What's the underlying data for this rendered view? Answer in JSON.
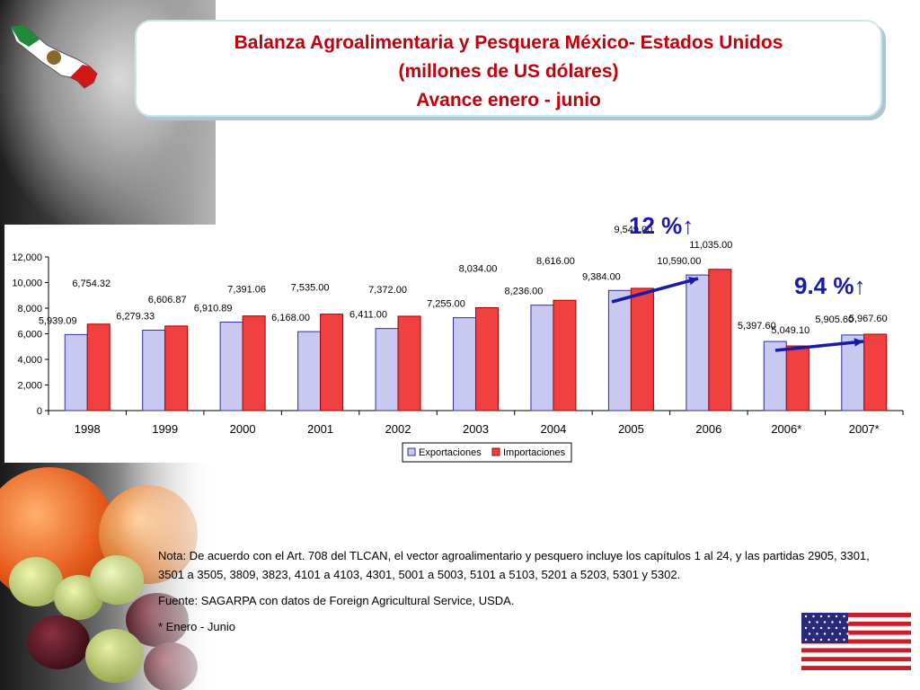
{
  "header": {
    "title_line1": "Balanza Agroalimentaria y Pesquera México- Estados Unidos",
    "title_line2": "(millones de US dólares)",
    "title_line3": "Avance enero - junio"
  },
  "annotations": {
    "growth_2005_2006": "12 %↑",
    "growth_2007": "9.4 %↑"
  },
  "colors": {
    "exports_fill": "#c8c8f0",
    "exports_stroke": "#3030a0",
    "imports_fill": "#f04040",
    "imports_stroke": "#a00000",
    "title": "#c0000c",
    "arrow": "#1a1aa8"
  },
  "notes": {
    "nota": "Nota: De acuerdo con el Art. 708 del TLCAN, el vector agroalimentario y pesquero incluye los capítulos 1 al 24, y las partidas 2905, 3301, 3501 a 3505, 3809, 3823, 4101 a 4103, 4301, 5001 a 5003, 5101 a 5103, 5201 a 5203, 5301 y 5302.",
    "fuente": "Fuente: SAGARPA con datos de Foreign Agricultural Service, USDA.",
    "asterisco": "* Enero - Junio"
  },
  "chart_data": {
    "type": "bar",
    "title": "",
    "xlabel": "",
    "ylabel": "",
    "categories": [
      "1998",
      "1999",
      "2000",
      "2001",
      "2002",
      "2003",
      "2004",
      "2005",
      "2006",
      "2006*",
      "2007*"
    ],
    "ylim": [
      0,
      12000
    ],
    "yticks": [
      0,
      2000,
      4000,
      6000,
      8000,
      10000,
      12000
    ],
    "ytick_labels": [
      "0",
      "2,000",
      "4,000",
      "6,000",
      "8,000",
      "10,000",
      "12,000"
    ],
    "grid": false,
    "legend_position": "bottom",
    "series": [
      {
        "name": "Exportaciones",
        "values": [
          5939.09,
          6279.33,
          6910.89,
          6168.0,
          6411.0,
          7255.0,
          8236.0,
          9384.0,
          10590.0,
          5397.6,
          5905.6
        ],
        "labels": [
          "5,939.09",
          "6,279.33",
          "6,910.89",
          "6,168.00",
          "6,411.00",
          "7,255.00",
          "8,236.00",
          "9,384.00",
          "10,590.00",
          "5,397.60",
          "5,905.60"
        ]
      },
      {
        "name": "Importaciones",
        "values": [
          6754.32,
          6606.87,
          7391.06,
          7535.0,
          7372.0,
          8034.0,
          8616.0,
          9549.0,
          11035.0,
          5049.1,
          5967.6
        ],
        "labels": [
          "6,754.32",
          "6,606.87",
          "7,391.06",
          "7,535.00",
          "7,372.00",
          "8,034.00",
          "8,616.00",
          "9,549.00",
          "11,035.00",
          "5,049.10",
          "5,967.60"
        ]
      }
    ]
  }
}
